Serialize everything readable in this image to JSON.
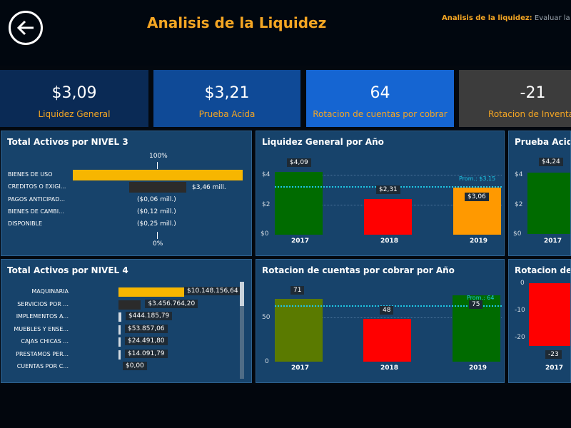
{
  "header": {
    "title": "Analisis de la Liquidez",
    "subtitle_label": "Analisis de la liquidez:",
    "subtitle_text": "Evaluar la capa"
  },
  "kpis": [
    {
      "value": "$3,09",
      "label": "Liquidez General",
      "color": "#0a2a55"
    },
    {
      "value": "$3,21",
      "label": "Prueba Acida",
      "color": "#0f4a97"
    },
    {
      "value": "64",
      "label": "Rotacion de cuentas por cobrar",
      "color": "#1565d2"
    },
    {
      "value": "-21",
      "label": "Rotacion de Inventar",
      "color": "#3c3c3c"
    }
  ],
  "nivel3": {
    "title": "Total Activos por NIVEL 3",
    "top_pct": "100%",
    "bottom_pct": "0%",
    "rows": [
      {
        "label": "BIENES DE USO",
        "value_text": ""
      },
      {
        "label": "CREDITOS O EXIGI...",
        "value_text": "$3,46 mill."
      },
      {
        "label": "PAGOS ANTICIPAD...",
        "value_text": "($0,06 mill.)"
      },
      {
        "label": "BIENES DE CAMBI...",
        "value_text": "($0,12 mill.)"
      },
      {
        "label": "DISPONIBLE",
        "value_text": "($0,25 mill.)"
      }
    ]
  },
  "nivel4": {
    "title": "Total Activos por NIVEL 4",
    "rows": [
      {
        "label": "MAQUINARIA",
        "value": 10148156.64,
        "value_text": "$10.148.156,64"
      },
      {
        "label": "SERVICIOS POR ...",
        "value": 3456764.2,
        "value_text": "$3.456.764,20"
      },
      {
        "label": "IMPLEMENTOS A...",
        "value": 444185.79,
        "value_text": "$444.185,79"
      },
      {
        "label": "MUEBLES Y ENSE...",
        "value": 53857.06,
        "value_text": "$53.857,06"
      },
      {
        "label": "CAJAS CHICAS ...",
        "value": 24491.8,
        "value_text": "$24.491,80"
      },
      {
        "label": "PRESTAMOS PER...",
        "value": 14091.79,
        "value_text": "$14.091,79"
      },
      {
        "label": "CUENTAS POR C...",
        "value": 0,
        "value_text": "$0,00"
      }
    ]
  },
  "liquidez_chart": {
    "title": "Liquidez General por Año",
    "avg_label": "Prom.: $3,15",
    "yticks": [
      "$4",
      "$2",
      "$0"
    ],
    "years": [
      "2017",
      "2018",
      "2019"
    ],
    "labels": [
      "$4,09",
      "$2,31",
      "$3,06"
    ]
  },
  "prueba_chart": {
    "title": "Prueba Acida por",
    "yticks": [
      "$4",
      "$2",
      "$0"
    ],
    "year": "2017",
    "label": "$4,24"
  },
  "rotacion_chart": {
    "title": "Rotacion de cuentas por cobrar por Año",
    "avg_label": "Prom.: 64",
    "yticks": [
      "50",
      "0"
    ],
    "years": [
      "2017",
      "2018",
      "2019"
    ],
    "labels": [
      "71",
      "48",
      "75"
    ]
  },
  "inventario_chart": {
    "title": "Rotacion de In",
    "yticks": [
      "0",
      "-10",
      "-20"
    ],
    "year": "2017",
    "label": "-23"
  },
  "chart_data": [
    {
      "type": "bar",
      "title": "Liquidez General por Año",
      "categories": [
        "2017",
        "2018",
        "2019"
      ],
      "values": [
        4.09,
        2.31,
        3.06
      ],
      "average": 3.15,
      "ylim": [
        0,
        4.5
      ],
      "colors": [
        "#006b00",
        "#ff0000",
        "#ff9900"
      ]
    },
    {
      "type": "bar",
      "title": "Rotacion de cuentas por cobrar por Año",
      "categories": [
        "2017",
        "2018",
        "2019"
      ],
      "values": [
        71,
        48,
        75
      ],
      "average": 64,
      "ylim": [
        0,
        80
      ],
      "colors": [
        "#5a7a00",
        "#ff0000",
        "#006b00"
      ]
    },
    {
      "type": "bar",
      "title": "Total Activos por NIVEL 3",
      "categories": [
        "BIENES DE USO",
        "CREDITOS O EXIGI...",
        "PAGOS ANTICIPAD...",
        "BIENES DE CAMBI...",
        "DISPONIBLE"
      ],
      "values": [
        null,
        3.46,
        -0.06,
        -0.12,
        -0.25
      ],
      "unit": "mill."
    },
    {
      "type": "bar",
      "title": "Total Activos por NIVEL 4",
      "categories": [
        "MAQUINARIA",
        "SERVICIOS POR ...",
        "IMPLEMENTOS A...",
        "MUEBLES Y ENSE...",
        "CAJAS CHICAS ...",
        "PRESTAMOS PER...",
        "CUENTAS POR C..."
      ],
      "values": [
        10148156.64,
        3456764.2,
        444185.79,
        53857.06,
        24491.8,
        14091.79,
        0
      ]
    }
  ]
}
